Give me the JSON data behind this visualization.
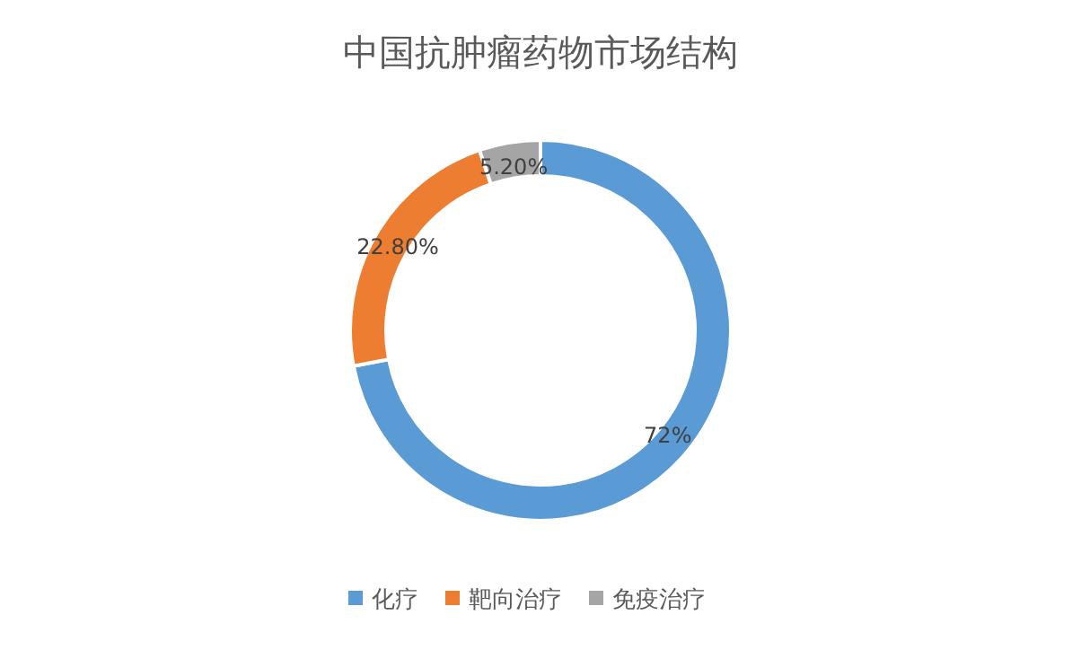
{
  "chart_data": {
    "type": "donut",
    "title": "中国抗肿瘤药物市场结构",
    "categories": [
      "化疗",
      "靶向治疗",
      "免疫治疗"
    ],
    "values": [
      72,
      22.8,
      5.2
    ],
    "colors": [
      "#5b9bd5",
      "#ed7d31",
      "#a5a5a5"
    ],
    "value_labels": [
      "72%",
      "22.80%",
      "5.20%"
    ],
    "legend": "bottom"
  }
}
